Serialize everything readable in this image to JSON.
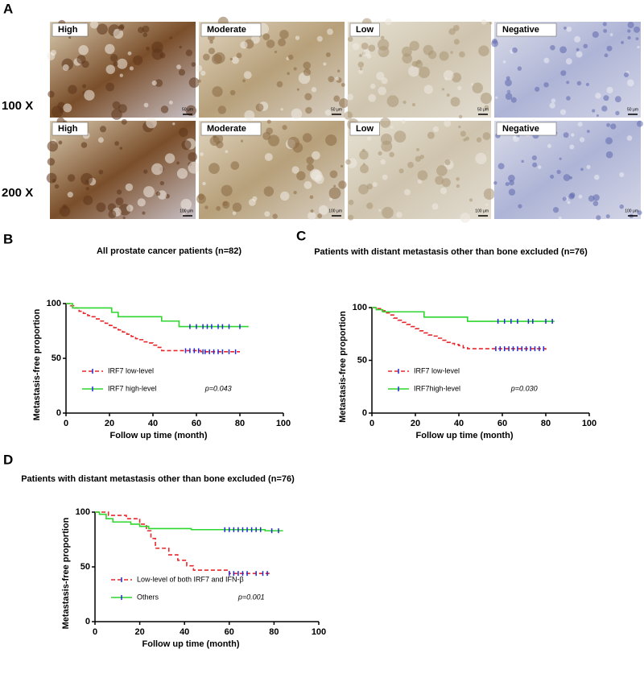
{
  "panel_labels": [
    "A",
    "B",
    "C",
    "D"
  ],
  "micrographs": {
    "rows": [
      {
        "label": "100 X",
        "panels": [
          {
            "label": "High",
            "scale": "50 μm"
          },
          {
            "label": "Moderate",
            "scale": "50 μm"
          },
          {
            "label": "Low",
            "scale": "50 μm"
          },
          {
            "label": "Negative",
            "scale": "50 μm"
          }
        ]
      },
      {
        "label": "200 X",
        "panels": [
          {
            "label": "High",
            "scale": "100 μm"
          },
          {
            "label": "Moderate",
            "scale": "100 μm"
          },
          {
            "label": "Low",
            "scale": "100 μm"
          },
          {
            "label": "Negative",
            "scale": "100 μm"
          }
        ]
      }
    ]
  },
  "chart_data": [
    {
      "type": "line",
      "step": true,
      "title": "All prostate cancer patients (n=82)",
      "x_label": "Follow up time (month)",
      "y_label": "Metastasis-free proportion",
      "xlim": [
        0,
        100
      ],
      "xticks": [
        0,
        20,
        40,
        60,
        80,
        100
      ],
      "ylim": [
        0,
        100
      ],
      "yticks": [
        0,
        50,
        100
      ],
      "legend": "lower left",
      "annotation": "p=0.043",
      "censor_color": "#1f2ad8",
      "series": [
        {
          "name": "IRF7 low-level",
          "color": "#e8262b",
          "style": "dashed",
          "x": [
            0,
            2,
            4,
            6,
            8,
            10,
            12,
            14,
            16,
            18,
            20,
            22,
            24,
            26,
            28,
            30,
            32,
            34,
            36,
            38,
            40,
            42,
            44,
            62,
            80
          ],
          "values": [
            100,
            98,
            96,
            93,
            91,
            89,
            88,
            86,
            84,
            82,
            80,
            78,
            76,
            74,
            72,
            70,
            68,
            67,
            65,
            64,
            62,
            60,
            57,
            56,
            56
          ],
          "censored": [
            55,
            57,
            59,
            61,
            63,
            64,
            66,
            68,
            70,
            72,
            75,
            78
          ]
        },
        {
          "name": "IRF7 high-level",
          "color": "#2fd62f",
          "style": "solid",
          "x": [
            0,
            3,
            21,
            24,
            44,
            52,
            84
          ],
          "values": [
            100,
            96,
            92,
            88,
            84,
            79,
            79
          ],
          "censored": [
            57,
            60,
            63,
            65,
            67,
            70,
            72,
            75,
            80
          ]
        }
      ]
    },
    {
      "type": "line",
      "step": true,
      "title": "Patients with distant metastasis other than bone excluded (n=76)",
      "x_label": "Follow up time (month)",
      "y_label": "Metastasis-free proportion",
      "xlim": [
        0,
        100
      ],
      "xticks": [
        0,
        20,
        40,
        60,
        80,
        100
      ],
      "ylim": [
        0,
        100
      ],
      "yticks": [
        0,
        50,
        100
      ],
      "legend": "lower left",
      "annotation": "p=0.030",
      "censor_color": "#1f2ad8",
      "series": [
        {
          "name": "IRF7 low-level",
          "color": "#e8262b",
          "style": "dashed",
          "x": [
            0,
            2,
            4,
            6,
            8,
            10,
            12,
            14,
            16,
            18,
            20,
            22,
            24,
            26,
            28,
            30,
            32,
            34,
            36,
            38,
            40,
            42,
            44,
            80
          ],
          "values": [
            100,
            99,
            97,
            95,
            93,
            90,
            88,
            86,
            84,
            82,
            80,
            78,
            76,
            74,
            73,
            71,
            69,
            67,
            66,
            65,
            64,
            62,
            61,
            60
          ],
          "censored": [
            57,
            59,
            61,
            63,
            65,
            67,
            69,
            71,
            73,
            75,
            77,
            79
          ]
        },
        {
          "name": "IRF7high-level",
          "color": "#2fd62f",
          "style": "solid",
          "x": [
            0,
            2,
            5,
            24,
            44,
            84
          ],
          "values": [
            100,
            98,
            96,
            91,
            87,
            87
          ],
          "censored": [
            58,
            61,
            64,
            67,
            72,
            74,
            80,
            83
          ]
        }
      ]
    },
    {
      "type": "line",
      "step": true,
      "title": "Patients with distant metastasis other than bone excluded (n=76)",
      "x_label": "Follow up time (month)",
      "y_label": "Metastasis-free proportion",
      "xlim": [
        0,
        100
      ],
      "xticks": [
        0,
        20,
        40,
        60,
        80,
        100
      ],
      "ylim": [
        0,
        100
      ],
      "yticks": [
        0,
        50,
        100
      ],
      "legend": "lower left",
      "annotation": "p=0.001",
      "censor_color": "#1f2ad8",
      "series": [
        {
          "name": "Low-level of both IRF7 and IFN-β",
          "color": "#e8262b",
          "style": "dashed",
          "x": [
            0,
            6,
            14,
            20,
            23,
            25,
            27,
            33,
            37,
            41,
            44,
            60,
            78
          ],
          "values": [
            100,
            97,
            94,
            89,
            83,
            76,
            67,
            61,
            56,
            51,
            47,
            44,
            44
          ],
          "censored": [
            60,
            62,
            64,
            66,
            68,
            72,
            75,
            77
          ]
        },
        {
          "name": "Others",
          "color": "#2fd62f",
          "style": "solid",
          "x": [
            0,
            2,
            5,
            8,
            16,
            20,
            24,
            43,
            76,
            84
          ],
          "values": [
            100,
            98,
            94,
            91,
            89,
            87,
            85,
            84,
            83,
            83
          ],
          "censored": [
            58,
            60,
            62,
            64,
            66,
            68,
            70,
            72,
            74,
            79,
            82
          ]
        }
      ]
    }
  ]
}
